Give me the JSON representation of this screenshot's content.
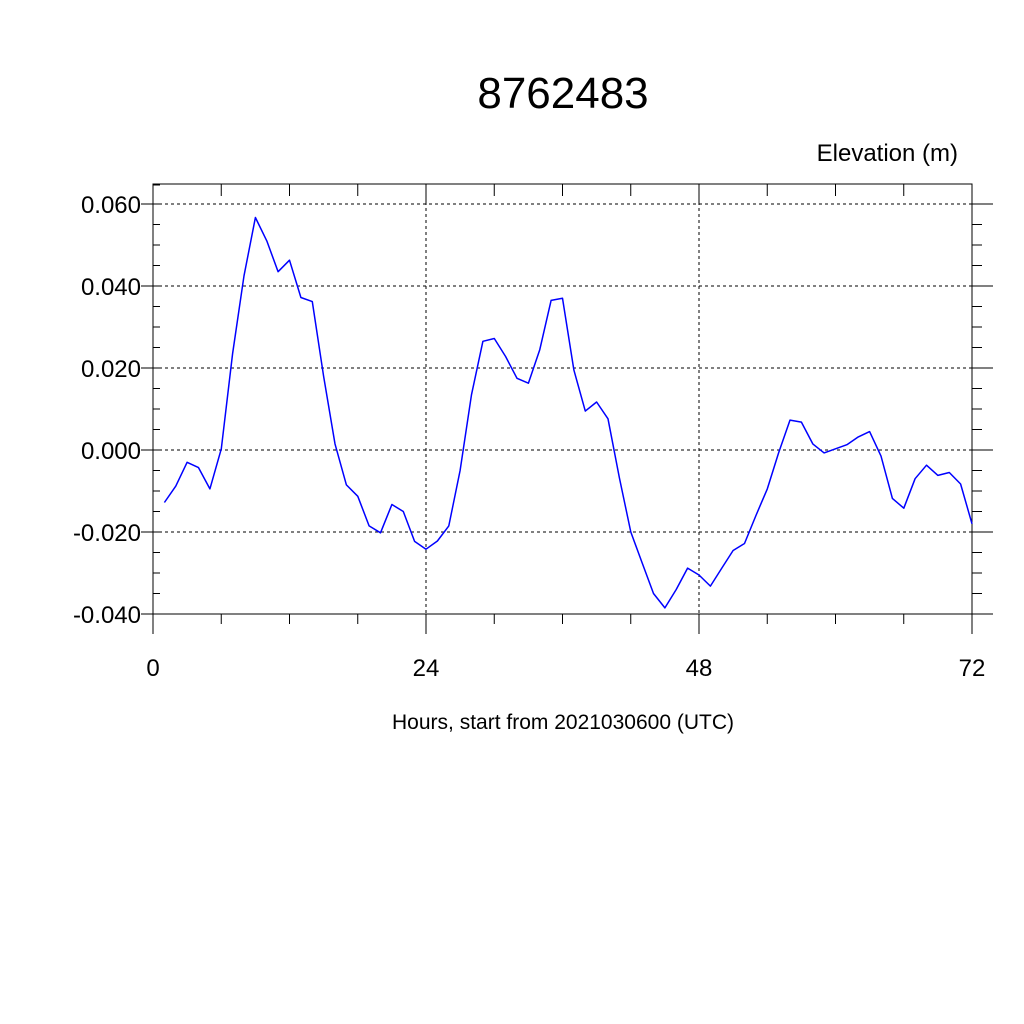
{
  "chart_data": {
    "type": "line",
    "title": "8762483",
    "unit_label": "Elevation (m)",
    "xlabel": "Hours, start from 2021030600 (UTC)",
    "ylabel": "",
    "xlim": [
      0,
      72
    ],
    "ylim": [
      -0.04,
      0.06
    ],
    "x_ticks": [
      "0",
      "24",
      "48",
      "72"
    ],
    "y_ticks": [
      "-0.040",
      "-0.020",
      "0.000",
      "0.020",
      "0.040",
      "0.060"
    ],
    "grid": true,
    "line_color": "#0000ff",
    "series": [
      {
        "x": [
          1,
          2,
          3,
          4,
          5,
          6,
          7,
          8,
          9,
          10,
          11,
          12,
          13,
          14,
          15,
          16,
          17,
          18,
          19,
          20,
          21,
          22,
          23,
          24,
          25,
          26,
          27,
          28,
          29,
          30,
          31,
          32,
          33,
          34,
          35,
          36,
          37,
          38,
          39,
          40,
          41,
          42,
          43,
          44,
          45,
          46,
          47,
          48,
          49,
          50,
          51,
          52,
          53,
          54,
          55,
          56,
          57,
          58,
          59,
          60,
          61,
          62,
          63,
          64,
          65,
          66,
          67,
          68,
          69,
          70,
          71,
          72
        ],
        "values": [
          -0.0128,
          -0.0088,
          -0.003,
          -0.0043,
          -0.0095,
          0.0003,
          0.0235,
          0.0425,
          0.0567,
          0.051,
          0.0435,
          0.0463,
          0.0372,
          0.0362,
          0.018,
          0.0015,
          -0.0085,
          -0.0113,
          -0.0185,
          -0.0202,
          -0.0133,
          -0.015,
          -0.0223,
          -0.0242,
          -0.0222,
          -0.0185,
          -0.005,
          0.0135,
          0.0265,
          0.0272,
          0.0228,
          0.0175,
          0.0163,
          0.0245,
          0.0365,
          0.037,
          0.0195,
          0.0095,
          0.0117,
          0.0076,
          -0.0068,
          -0.02,
          -0.0275,
          -0.035,
          -0.0385,
          -0.034,
          -0.0288,
          -0.0305,
          -0.0332,
          -0.0288,
          -0.0245,
          -0.0228,
          -0.016,
          -0.0095,
          -0.0007,
          0.0073,
          0.0068,
          0.0015,
          -0.0007,
          0.0003,
          0.0013,
          0.0032,
          0.0045,
          -0.0015,
          -0.0118,
          -0.0142,
          -0.007,
          -0.0037,
          -0.0062,
          -0.0055,
          -0.0083,
          -0.018
        ]
      }
    ]
  }
}
